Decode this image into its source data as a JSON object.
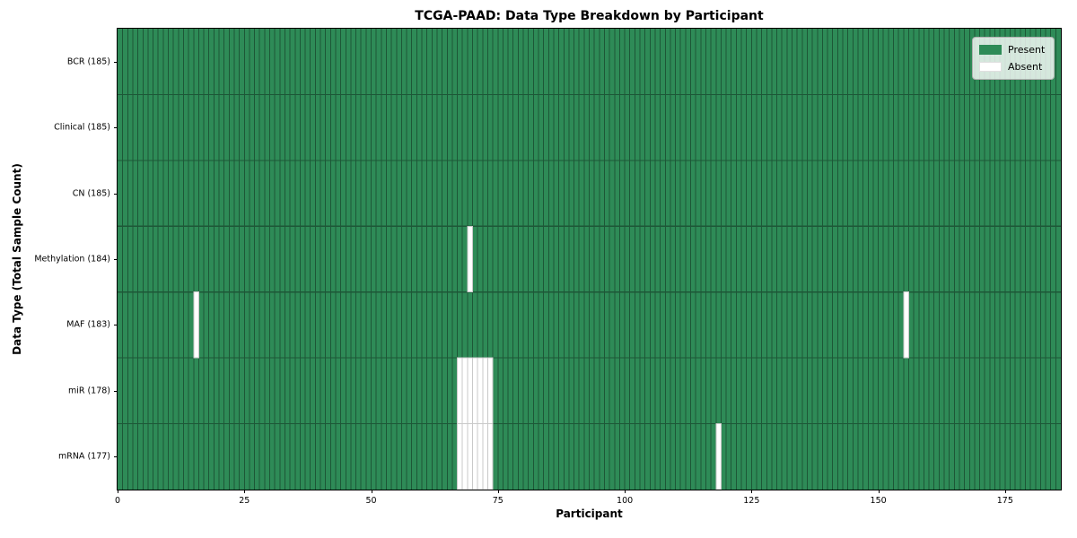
{
  "title": "TCGA-PAAD: Data Type Breakdown by Participant",
  "xlabel": "Participant",
  "ylabel": "Data Type (Total Sample Count)",
  "legend": {
    "present_label": "Present",
    "absent_label": "Absent"
  },
  "colors": {
    "present": "#2e8b57",
    "absent": "#ffffff",
    "present_cell_edge": "#1d5737",
    "absent_cell_edge": "#c9c9c9",
    "spine": "#000000"
  },
  "chart_data": {
    "type": "heatmap",
    "title": "TCGA-PAAD: Data Type Breakdown by Participant",
    "xlabel": "Participant",
    "ylabel": "Data Type (Total Sample Count)",
    "n_participants": 185,
    "x_ticks": [
      0,
      25,
      50,
      75,
      100,
      125,
      150,
      175
    ],
    "legend_entries": [
      "Present",
      "Absent"
    ],
    "legend_position": "upper right",
    "rows": [
      {
        "label": "BCR (185)",
        "data_type": "BCR",
        "present_count": 185,
        "absent_participants": []
      },
      {
        "label": "Clinical (185)",
        "data_type": "Clinical",
        "present_count": 185,
        "absent_participants": []
      },
      {
        "label": "CN (185)",
        "data_type": "CN",
        "present_count": 185,
        "absent_participants": []
      },
      {
        "label": "Methylation (184)",
        "data_type": "Methylation",
        "present_count": 184,
        "absent_participants": [
          69
        ]
      },
      {
        "label": "MAF (183)",
        "data_type": "MAF",
        "present_count": 183,
        "absent_participants": [
          15,
          155
        ]
      },
      {
        "label": "miR (178)",
        "data_type": "miR",
        "present_count": 178,
        "absent_participants": [
          67,
          68,
          69,
          70,
          71,
          72,
          73
        ]
      },
      {
        "label": "mRNA (177)",
        "data_type": "mRNA",
        "present_count": 177,
        "absent_participants": [
          67,
          68,
          69,
          70,
          71,
          72,
          73,
          118
        ]
      }
    ]
  }
}
